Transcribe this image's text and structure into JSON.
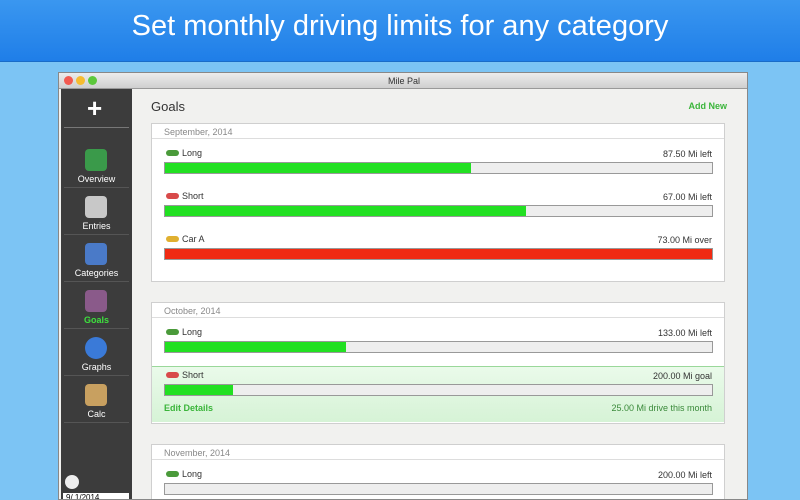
{
  "banner": {
    "title": "Set monthly driving limits for any category"
  },
  "window": {
    "title": "Mile Pal"
  },
  "sidebar": {
    "items": [
      {
        "label": "Overview"
      },
      {
        "label": "Entries"
      },
      {
        "label": "Categories"
      },
      {
        "label": "Goals",
        "selected": true
      },
      {
        "label": "Graphs"
      },
      {
        "label": "Calc"
      }
    ],
    "date": "9/ 1/2014"
  },
  "main": {
    "title": "Goals",
    "action": "Add New",
    "sections": [
      {
        "header": "September, 2014",
        "goals": [
          {
            "name": "Long",
            "status": "87.50 Mi left",
            "progress": 56,
            "color": "#22e022"
          },
          {
            "name": "Short",
            "status": "67.00 Mi left",
            "progress": 66,
            "color": "#22e022"
          },
          {
            "name": "Car A",
            "status": "73.00 Mi over",
            "progress": 100,
            "color": "#f02a12"
          }
        ]
      },
      {
        "header": "October, 2014",
        "goals": [
          {
            "name": "Long",
            "status": "133.00 Mi left",
            "progress": 33,
            "color": "#22e022"
          },
          {
            "name": "Short",
            "status": "200.00 Mi goal",
            "progress": 12.5,
            "color": "#22e022",
            "highlighted": true,
            "link": "Edit Details",
            "detail": "25.00 Mi drive this month"
          }
        ]
      },
      {
        "header": "November, 2014",
        "goals": [
          {
            "name": "Long",
            "status": "200.00 Mi left",
            "progress": 0,
            "color": "#22e022"
          }
        ]
      }
    ]
  }
}
